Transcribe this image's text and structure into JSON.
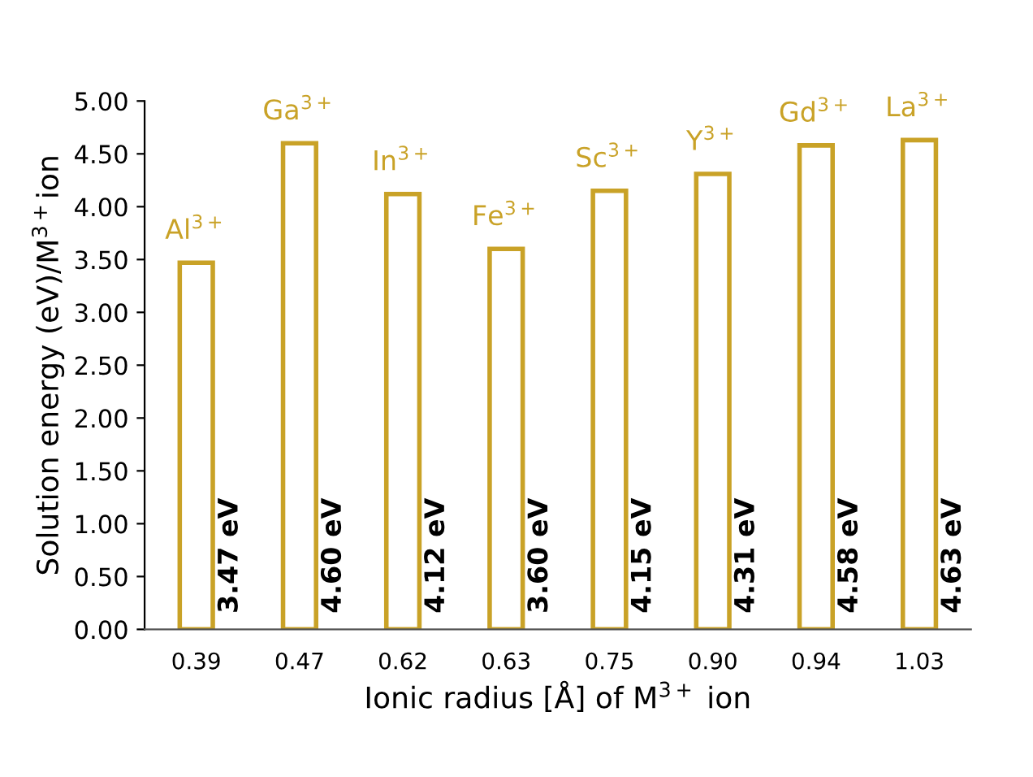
{
  "chart_data": {
    "type": "bar",
    "xlabel": "Ionic radius [Å] of M$^{3+}$ ion",
    "ylabel": "Solution energy (eV)/M$^{3+}$ion",
    "categories": [
      "0.39",
      "0.47",
      "0.62",
      "0.63",
      "0.75",
      "0.90",
      "0.94",
      "1.03"
    ],
    "values": [
      3.47,
      4.6,
      4.12,
      3.6,
      4.15,
      4.31,
      4.58,
      4.63
    ],
    "value_labels": [
      "3.47 eV",
      "4.60 eV",
      "4.12 eV",
      "3.60 eV",
      "4.15 eV",
      "4.31 eV",
      "4.58 eV",
      "4.63 eV"
    ],
    "color": "#c9a227",
    "ylim": [
      0,
      5
    ],
    "yticks": [
      {
        "value": 0,
        "label": "0.00"
      },
      {
        "value": 0.5,
        "label": "0.50"
      },
      {
        "value": 1,
        "label": "1.00"
      },
      {
        "value": 1.5,
        "label": "1.50"
      },
      {
        "value": 2,
        "label": "2.00"
      },
      {
        "value": 2.5,
        "label": "2.50"
      },
      {
        "value": 3,
        "label": "3.00"
      },
      {
        "value": 3.5,
        "label": "3.50"
      },
      {
        "value": 4,
        "label": "4.00"
      },
      {
        "value": 4.5,
        "label": "4.50"
      },
      {
        "value": 5,
        "label": "5.00"
      }
    ],
    "annotations": [
      {
        "text": "Al$^{3+}$",
        "x": "0.39",
        "y": 3.47
      },
      {
        "text": "Ga$^{3+}$",
        "x": "0.47",
        "y": 4.6
      },
      {
        "text": "In$^{3+}$",
        "x": "0.62",
        "y": 4.12
      },
      {
        "text": "Fe$^{3+}$",
        "x": "0.63",
        "y": 3.6
      },
      {
        "text": "Sc$^{3+}$",
        "x": "0.75",
        "y": 4.15
      },
      {
        "text": "Y$^{3+}$",
        "x": "0.90",
        "y": 4.31
      },
      {
        "text": "Gd$^{3+}$",
        "x": "0.94",
        "y": 4.58
      },
      {
        "text": "La$^{3+}$",
        "x": "1.03",
        "y": 4.63
      }
    ],
    "grid": false,
    "legend": false
  }
}
